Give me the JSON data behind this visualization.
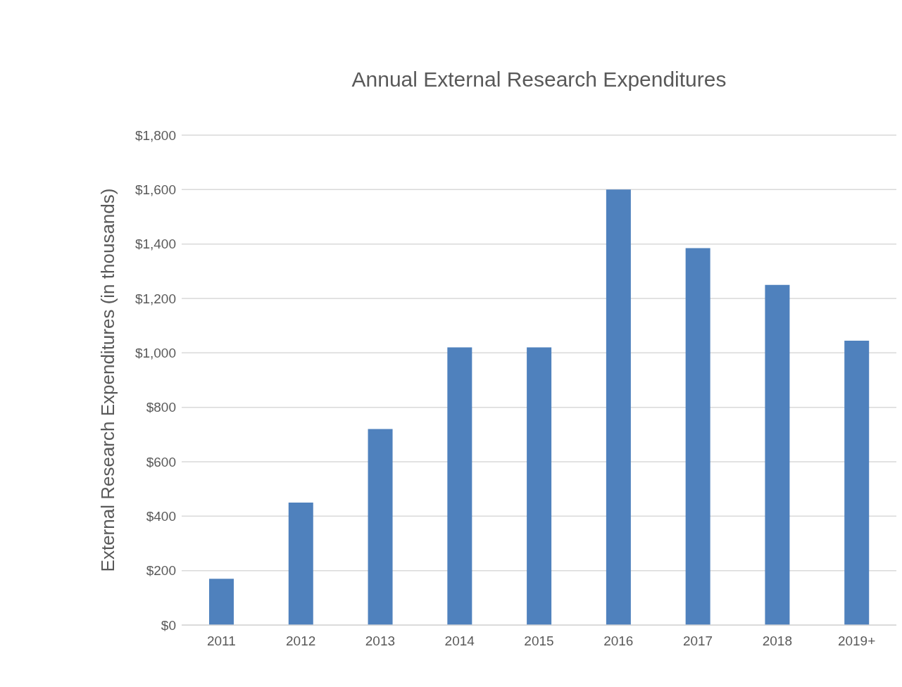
{
  "chart_data": {
    "type": "bar",
    "title": "Annual External Research Expenditures",
    "ylabel": "External Research Expenditures (in thousands)",
    "categories": [
      "2011",
      "2012",
      "2013",
      "2014",
      "2015",
      "2016",
      "2017",
      "2018",
      "2019+"
    ],
    "values": [
      170,
      450,
      720,
      1020,
      1020,
      1600,
      1385,
      1250,
      1045
    ],
    "color": "#4f81bd",
    "ylim": [
      0,
      1800
    ],
    "yticks": [
      {
        "value": 0,
        "label": "$0"
      },
      {
        "value": 200,
        "label": "$200"
      },
      {
        "value": 400,
        "label": "$400"
      },
      {
        "value": 600,
        "label": "$600"
      },
      {
        "value": 800,
        "label": "$800"
      },
      {
        "value": 1000,
        "label": "$1,000"
      },
      {
        "value": 1200,
        "label": "$1,200"
      },
      {
        "value": 1400,
        "label": "$1,400"
      },
      {
        "value": 1600,
        "label": "$1,600"
      },
      {
        "value": 1800,
        "label": "$1,800"
      }
    ],
    "grid": "y",
    "legend": false
  }
}
